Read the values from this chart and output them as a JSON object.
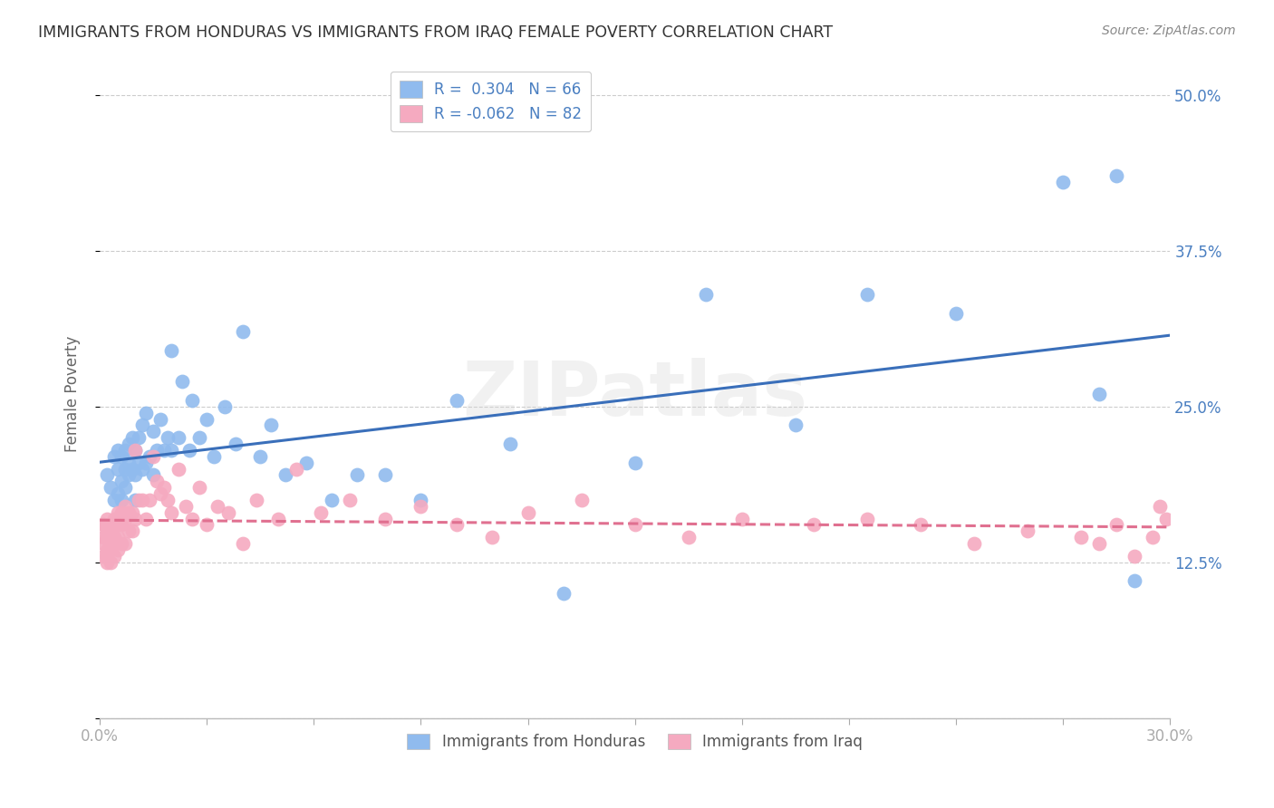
{
  "title": "IMMIGRANTS FROM HONDURAS VS IMMIGRANTS FROM IRAQ FEMALE POVERTY CORRELATION CHART",
  "source": "Source: ZipAtlas.com",
  "ylabel": "Female Poverty",
  "yticks": [
    0.0,
    0.125,
    0.25,
    0.375,
    0.5
  ],
  "ytick_labels": [
    "",
    "12.5%",
    "25.0%",
    "37.5%",
    "50.0%"
  ],
  "xlim": [
    0.0,
    0.3
  ],
  "ylim": [
    0.0,
    0.52
  ],
  "r_honduras": 0.304,
  "n_honduras": 66,
  "r_iraq": -0.062,
  "n_iraq": 82,
  "color_honduras": "#90bbee",
  "color_iraq": "#f5aac0",
  "trendline_honduras": "#3a6fba",
  "trendline_iraq": "#e07090",
  "legend_label_honduras": "Immigrants from Honduras",
  "legend_label_iraq": "Immigrants from Iraq",
  "watermark": "ZIPatlas",
  "background_color": "#ffffff",
  "grid_color": "#cccccc",
  "title_color": "#333333",
  "axis_color": "#4a7fc1",
  "honduras_x": [
    0.002,
    0.003,
    0.004,
    0.004,
    0.005,
    0.005,
    0.005,
    0.006,
    0.006,
    0.006,
    0.007,
    0.007,
    0.007,
    0.008,
    0.008,
    0.008,
    0.009,
    0.009,
    0.01,
    0.01,
    0.01,
    0.011,
    0.011,
    0.012,
    0.012,
    0.013,
    0.013,
    0.014,
    0.015,
    0.015,
    0.016,
    0.017,
    0.018,
    0.019,
    0.02,
    0.02,
    0.022,
    0.023,
    0.025,
    0.026,
    0.028,
    0.03,
    0.032,
    0.035,
    0.038,
    0.04,
    0.045,
    0.048,
    0.052,
    0.058,
    0.065,
    0.072,
    0.08,
    0.09,
    0.1,
    0.115,
    0.13,
    0.15,
    0.17,
    0.195,
    0.215,
    0.24,
    0.27,
    0.28,
    0.285,
    0.29
  ],
  "honduras_y": [
    0.195,
    0.185,
    0.175,
    0.21,
    0.18,
    0.2,
    0.215,
    0.175,
    0.19,
    0.21,
    0.185,
    0.2,
    0.215,
    0.195,
    0.205,
    0.22,
    0.2,
    0.225,
    0.175,
    0.195,
    0.215,
    0.205,
    0.225,
    0.2,
    0.235,
    0.205,
    0.245,
    0.21,
    0.195,
    0.23,
    0.215,
    0.24,
    0.215,
    0.225,
    0.215,
    0.295,
    0.225,
    0.27,
    0.215,
    0.255,
    0.225,
    0.24,
    0.21,
    0.25,
    0.22,
    0.31,
    0.21,
    0.235,
    0.195,
    0.205,
    0.175,
    0.195,
    0.195,
    0.175,
    0.255,
    0.22,
    0.1,
    0.205,
    0.34,
    0.235,
    0.34,
    0.325,
    0.43,
    0.26,
    0.435,
    0.11
  ],
  "iraq_x": [
    0.001,
    0.001,
    0.001,
    0.001,
    0.001,
    0.002,
    0.002,
    0.002,
    0.002,
    0.002,
    0.002,
    0.003,
    0.003,
    0.003,
    0.003,
    0.003,
    0.003,
    0.004,
    0.004,
    0.004,
    0.004,
    0.004,
    0.005,
    0.005,
    0.005,
    0.005,
    0.006,
    0.006,
    0.006,
    0.007,
    0.007,
    0.007,
    0.008,
    0.008,
    0.009,
    0.009,
    0.01,
    0.01,
    0.011,
    0.012,
    0.013,
    0.014,
    0.015,
    0.016,
    0.017,
    0.018,
    0.019,
    0.02,
    0.022,
    0.024,
    0.026,
    0.028,
    0.03,
    0.033,
    0.036,
    0.04,
    0.044,
    0.05,
    0.055,
    0.062,
    0.07,
    0.08,
    0.09,
    0.1,
    0.11,
    0.12,
    0.135,
    0.15,
    0.165,
    0.18,
    0.2,
    0.215,
    0.23,
    0.245,
    0.26,
    0.275,
    0.28,
    0.285,
    0.29,
    0.295,
    0.297,
    0.299
  ],
  "iraq_y": [
    0.155,
    0.155,
    0.145,
    0.14,
    0.13,
    0.16,
    0.15,
    0.145,
    0.135,
    0.13,
    0.125,
    0.155,
    0.15,
    0.145,
    0.14,
    0.135,
    0.125,
    0.16,
    0.155,
    0.145,
    0.14,
    0.13,
    0.165,
    0.155,
    0.145,
    0.135,
    0.165,
    0.155,
    0.14,
    0.17,
    0.16,
    0.14,
    0.165,
    0.15,
    0.165,
    0.15,
    0.215,
    0.16,
    0.175,
    0.175,
    0.16,
    0.175,
    0.21,
    0.19,
    0.18,
    0.185,
    0.175,
    0.165,
    0.2,
    0.17,
    0.16,
    0.185,
    0.155,
    0.17,
    0.165,
    0.14,
    0.175,
    0.16,
    0.2,
    0.165,
    0.175,
    0.16,
    0.17,
    0.155,
    0.145,
    0.165,
    0.175,
    0.155,
    0.145,
    0.16,
    0.155,
    0.16,
    0.155,
    0.14,
    0.15,
    0.145,
    0.14,
    0.155,
    0.13,
    0.145,
    0.17,
    0.16
  ]
}
